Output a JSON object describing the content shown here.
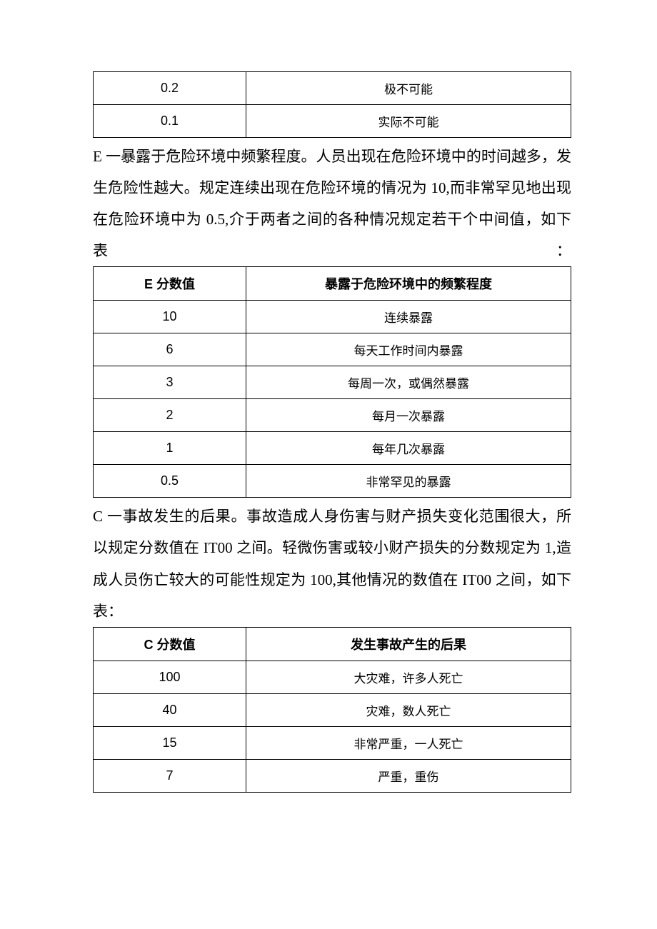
{
  "table1": {
    "rows": [
      {
        "value": "0.2",
        "desc": "极不可能"
      },
      {
        "value": "0.1",
        "desc": "实际不可能"
      }
    ]
  },
  "para1": {
    "text": "E 一暴露于危险环境中频繁程度。人员出现在危险环境中的时间越多，发生危险性越大。规定连续出现在危险环境的情况为 10,而非常罕见地出现在危险环境中为 0.5,介于两者之间的各种情况规定若干个中间值，如下表："
  },
  "table2": {
    "header": {
      "col1": "E 分数值",
      "col2": "暴露于危险环境中的频繁程度"
    },
    "rows": [
      {
        "value": "10",
        "desc": "连续暴露"
      },
      {
        "value": "6",
        "desc": "每天工作时间内暴露"
      },
      {
        "value": "3",
        "desc": "每周一次，或偶然暴露"
      },
      {
        "value": "2",
        "desc": "每月一次暴露"
      },
      {
        "value": "1",
        "desc": "每年几次暴露"
      },
      {
        "value": "0.5",
        "desc": "非常罕见的暴露"
      }
    ]
  },
  "para2": {
    "text": "C 一事故发生的后果。事故造成人身伤害与财产损失变化范围很大，所以规定分数值在 IT00 之间。轻微伤害或较小财产损失的分数规定为 1,造成人员伤亡较大的可能性规定为 100,其他情况的数值在 IT00 之间，如下表："
  },
  "table3": {
    "header": {
      "col1": "C 分数值",
      "col2": "发生事故产生的后果"
    },
    "rows": [
      {
        "value": "100",
        "desc": "大灾难，许多人死亡"
      },
      {
        "value": "40",
        "desc": "灾难，数人死亡"
      },
      {
        "value": "15",
        "desc": "非常严重，一人死亡"
      },
      {
        "value": "7",
        "desc": "严重，重伤"
      }
    ]
  },
  "table_styling": {
    "border_color": "#000000",
    "cell_font_size": 17,
    "header_font_size": 18,
    "col_left_width_pct": 32,
    "col_right_width_pct": 68
  },
  "paragraph_styling": {
    "font_size": 21,
    "line_height": 2.1
  }
}
